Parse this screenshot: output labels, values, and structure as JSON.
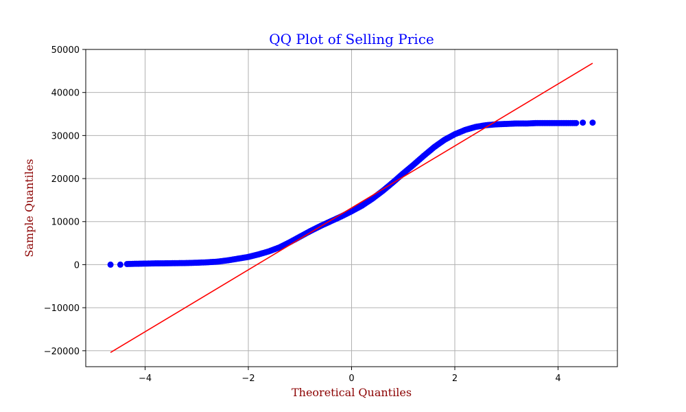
{
  "chart_data": {
    "type": "scatter",
    "title": "QQ Plot of Selling Price",
    "xlabel": "Theoretical Quantiles",
    "ylabel": "Sample Quantiles",
    "xlim": [
      -5.15,
      5.15
    ],
    "ylim": [
      -23700,
      50000
    ],
    "xticks": [
      -4,
      -2,
      0,
      2,
      4
    ],
    "yticks": [
      -20000,
      -10000,
      0,
      10000,
      20000,
      30000,
      40000,
      50000
    ],
    "xtick_labels": [
      "−4",
      "−2",
      "0",
      "2",
      "4"
    ],
    "ytick_labels": [
      "−20000",
      "−10000",
      "0",
      "10000",
      "20000",
      "30000",
      "40000",
      "50000"
    ],
    "grid": true,
    "colors": {
      "title": "#0000ff",
      "axis_labels": "#8b0000",
      "points": "#0000ff",
      "reference_line": "#ff0000",
      "grid": "#b0b0b0"
    },
    "series": [
      {
        "kind": "points",
        "x": [
          -4.67,
          -4.48,
          -4.35,
          -4.2,
          -4.0,
          -3.8,
          -3.6,
          -3.4,
          -3.2,
          -3.0,
          -2.8,
          -2.6,
          -2.4,
          -2.2,
          -2.0,
          -1.8,
          -1.6,
          -1.4,
          -1.2,
          -1.0,
          -0.8,
          -0.6,
          -0.4,
          -0.2,
          0.0,
          0.2,
          0.4,
          0.6,
          0.8,
          1.0,
          1.2,
          1.4,
          1.6,
          1.8,
          2.0,
          2.2,
          2.4,
          2.6,
          2.8,
          3.0,
          3.2,
          3.4,
          3.6,
          3.8,
          4.0,
          4.2,
          4.35,
          4.48,
          4.67
        ],
        "y": [
          0,
          0,
          150,
          200,
          250,
          300,
          320,
          350,
          380,
          450,
          550,
          700,
          1000,
          1400,
          1800,
          2400,
          3100,
          4000,
          5200,
          6500,
          7800,
          9000,
          10100,
          11200,
          12400,
          13700,
          15300,
          17100,
          19100,
          21200,
          23200,
          25300,
          27300,
          29000,
          30300,
          31300,
          32000,
          32400,
          32600,
          32700,
          32800,
          32800,
          32900,
          32900,
          32900,
          32900,
          32900,
          33000,
          33000
        ]
      },
      {
        "kind": "line",
        "x": [
          -4.67,
          4.67
        ],
        "y": [
          -20400,
          46800
        ]
      }
    ]
  }
}
